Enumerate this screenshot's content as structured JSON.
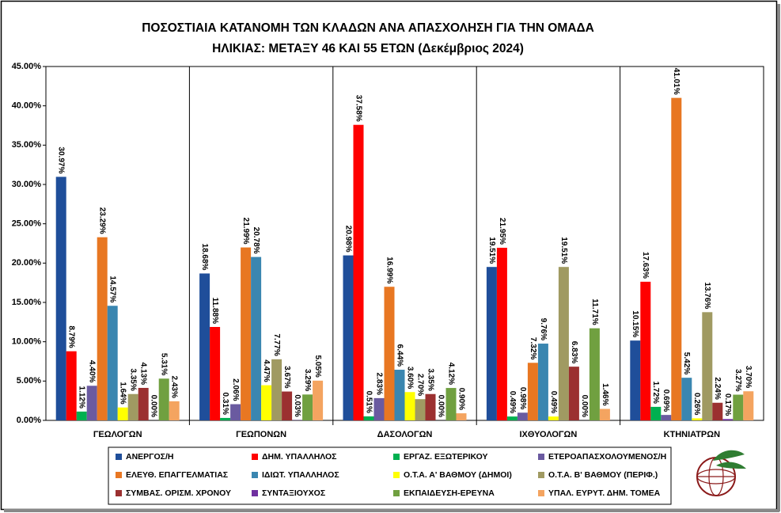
{
  "chart_data": {
    "type": "bar",
    "title": "ΠΟΣΟΣΤΙΑΙΑ ΚΑΤΑΝΟΜΗ ΤΩΝ ΚΛΑΔΩΝ ΑΝΑ ΑΠΑΣΧΟΛΗΣΗ ΓΙΑ ΤΗΝ ΟΜΑΔΑ",
    "subtitle": "ΗΛΙΚΙΑΣ: ΜΕΤΑΞΥ 46 ΚΑΙ 55 ΕΤΩΝ (Δεκέμβριος 2024)",
    "categories": [
      "ΓΕΩΛΟΓΩΝ",
      "ΓΕΩΠΟΝΩΝ",
      "ΔΑΣΟΛΟΓΩΝ",
      "ΙΧΘΥΟΛΟΓΩΝ",
      "ΚΤΗΝΙΑΤΡΩΝ"
    ],
    "series": [
      {
        "name": "ΑΝΕΡΓΟΣ/Η",
        "color": "#1f4e9a",
        "values": [
          30.97,
          18.68,
          20.98,
          19.51,
          10.15
        ],
        "value_labels": [
          "30.97%",
          "18.68%",
          "20.98%",
          "19.51%",
          "10.15%"
        ]
      },
      {
        "name": "ΔΗΜ. ΥΠΑΛΛΗΛΟΣ",
        "color": "#ff0000",
        "values": [
          8.79,
          11.88,
          37.58,
          21.95,
          17.63
        ],
        "value_labels": [
          "8.79%",
          "11.88%",
          "37.58%",
          "21.95%",
          "17.63%"
        ]
      },
      {
        "name": "ΕΡΓΑΖ. ΕΞΩΤΕΡΙΚΟΥ",
        "color": "#00b050",
        "values": [
          1.12,
          0.31,
          0.51,
          0.49,
          1.72
        ],
        "value_labels": [
          "1.12%",
          "0.31%",
          "0.51%",
          "0.49%",
          "1.72%"
        ]
      },
      {
        "name": "ΕΤΕΡΟΑΠΑΣΧΟΛΟΥΜΕΝΟΣ/Η",
        "color": "#6a5aa0",
        "values": [
          4.4,
          2.06,
          2.83,
          0.98,
          0.69
        ],
        "value_labels": [
          "4.40%",
          "2.06%",
          "2.83%",
          "0.98%",
          "0.69%"
        ]
      },
      {
        "name": "ΕΛΕΥΘ. ΕΠΑΓΓΕΛΜΑΤΙΑΣ",
        "color": "#e87722",
        "values": [
          23.29,
          21.99,
          16.99,
          7.32,
          41.01
        ],
        "value_labels": [
          "23.29%",
          "21.99%",
          "16.99%",
          "7.32%",
          "41.01%"
        ]
      },
      {
        "name": "ΙΔΙΩΤ. ΥΠΑΛΛΗΛΟΣ",
        "color": "#3a86b0",
        "values": [
          14.57,
          20.78,
          6.44,
          9.76,
          5.42
        ],
        "value_labels": [
          "14.57%",
          "20.78%",
          "6.44%",
          "9.76%",
          "5.42%"
        ]
      },
      {
        "name": "Ο.Τ.Α. Α' ΒΑΘΜΟΥ (ΔΗΜΟΙ)",
        "color": "#ffff00",
        "values": [
          1.64,
          4.47,
          3.6,
          0.49,
          0.26
        ],
        "value_labels": [
          "1.64%",
          "4.47%",
          "3.60%",
          "0.49%",
          "0.26%"
        ]
      },
      {
        "name": "Ο.Τ.Α. Β' ΒΑΘΜΟΥ (ΠΕΡΙΦ.)",
        "color": "#a09a62",
        "values": [
          3.35,
          7.77,
          2.7,
          19.51,
          13.76
        ],
        "value_labels": [
          "3.35%",
          "7.77%",
          "2.70%",
          "19.51%",
          "13.76%"
        ]
      },
      {
        "name": "ΣΥΜΒΑΣ. ΟΡΙΣΜ. ΧΡΟΝΟΥ",
        "color": "#9b3030",
        "values": [
          4.13,
          3.67,
          3.35,
          6.83,
          2.24
        ],
        "value_labels": [
          "4.13%",
          "3.67%",
          "3.35%",
          "6.83%",
          "2.24%"
        ]
      },
      {
        "name": "ΣΥΝΤΑΞΙΟΥΧΟΣ",
        "color": "#7030a0",
        "values": [
          0.0,
          0.03,
          0.0,
          0.0,
          0.17
        ],
        "value_labels": [
          "0.00%",
          "0.03%",
          "0.00%",
          "0.00%",
          "0.17%"
        ]
      },
      {
        "name": "ΕΚΠΑΙΔΕΥΣΗ-ΕΡΕΥΝΑ",
        "color": "#70a040",
        "values": [
          5.31,
          3.29,
          4.12,
          11.71,
          3.27
        ],
        "value_labels": [
          "5.31%",
          "3.29%",
          "4.12%",
          "11.71%",
          "3.27%"
        ]
      },
      {
        "name": "ΥΠΑΛ. ΕΥΡΥΤ. ΔΗΜ. ΤΟΜΕΑ",
        "color": "#f4a460",
        "values": [
          2.43,
          5.05,
          0.9,
          1.46,
          3.7
        ],
        "value_labels": [
          "2.43%",
          "5.05%",
          "0.90%",
          "1.46%",
          "3.70%"
        ]
      }
    ],
    "ylim": [
      0,
      45
    ],
    "yticks": [
      {
        "value": 0,
        "label": "0.00%"
      },
      {
        "value": 5,
        "label": "5.00%"
      },
      {
        "value": 10,
        "label": "10.00%"
      },
      {
        "value": 15,
        "label": "15.00%"
      },
      {
        "value": 20,
        "label": "20.00%"
      },
      {
        "value": 25,
        "label": "25.00%"
      },
      {
        "value": 30,
        "label": "30.00%"
      },
      {
        "value": 35,
        "label": "35.00%"
      },
      {
        "value": 40,
        "label": "40.00%"
      },
      {
        "value": 45,
        "label": "45.00%"
      }
    ],
    "grid": false,
    "legend": "bottom"
  }
}
